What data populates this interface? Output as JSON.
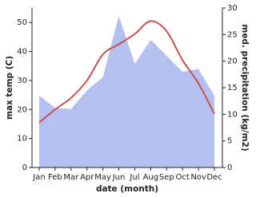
{
  "chart_data": {
    "type": "line",
    "x_label": "date (month)",
    "y_label": "max temp (C)",
    "y2_label": "med. precipitation (kg/m2)",
    "categories": [
      "Jan",
      "Feb",
      "Mar",
      "Apr",
      "May",
      "Jun",
      "Jul",
      "Aug",
      "Sep",
      "Oct",
      "Nov",
      "Dec"
    ],
    "series": [
      {
        "name": "med. precipitation",
        "kind": "area",
        "axis": "y2",
        "color": "#b4bff2",
        "values": [
          13.5,
          11.2,
          11,
          14.5,
          17,
          28.5,
          19.5,
          24,
          21,
          18,
          18.5,
          13.5
        ]
      },
      {
        "name": "max temp",
        "kind": "line",
        "color": "#c85050",
        "values": [
          15.5,
          20,
          24,
          30,
          39,
          42.5,
          46,
          50.5,
          47,
          37,
          29,
          18.5
        ]
      }
    ],
    "ylim": [
      0,
      55
    ],
    "yticks": [
      0,
      10,
      20,
      30,
      40,
      50
    ],
    "y2lim": [
      0,
      30
    ],
    "y2ticks": [
      0,
      5,
      10,
      15,
      20,
      25,
      30
    ]
  }
}
